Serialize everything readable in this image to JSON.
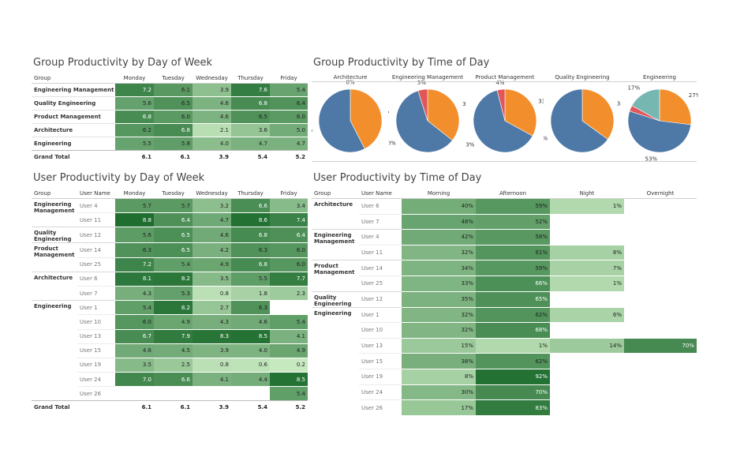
{
  "colors": {
    "morning": "#4e79a7",
    "afternoon": "#f28e2b",
    "night": "#e15759",
    "overnight": "#76b7b2",
    "heat_light": "#c7e9c0",
    "heat_dark": "#1f6e30"
  },
  "group_day": {
    "title": "Group Productivity by Day of Week",
    "group_header": "Group",
    "days": [
      "Monday",
      "Tuesday",
      "Wednesday",
      "Thursday",
      "Friday"
    ],
    "rows": [
      {
        "group": "Engineering Management",
        "values": [
          "7.2",
          "6.1",
          "3.9",
          "7.6",
          "5.4"
        ]
      },
      {
        "group": "Quality Engineering",
        "values": [
          "5.6",
          "6.5",
          "4.6",
          "6.8",
          "6.4"
        ]
      },
      {
        "group": "Product Management",
        "values": [
          "6.8",
          "6.0",
          "4.6",
          "6.5",
          "6.0"
        ]
      },
      {
        "group": "Architecture",
        "values": [
          "6.2",
          "6.8",
          "2.1",
          "3.6",
          "5.0"
        ]
      },
      {
        "group": "Engineering",
        "values": [
          "5.5",
          "5.8",
          "4.0",
          "4.7",
          "4.7"
        ]
      }
    ],
    "total_label": "Grand Total",
    "totals": [
      "6.1",
      "6.1",
      "3.9",
      "5.4",
      "5.2"
    ]
  },
  "group_time": {
    "title": "Group Productivity by Time of Day",
    "pies": [
      {
        "name": "Architecture",
        "slices": [
          {
            "key": "morning",
            "value": 57,
            "label": "57%"
          },
          {
            "key": "afternoon",
            "value": 42,
            "label": "42%"
          },
          {
            "key": "night",
            "value": 0,
            "label": "0%"
          }
        ]
      },
      {
        "name": "Engineering Management",
        "slices": [
          {
            "key": "morning",
            "value": 60,
            "label": "60%"
          },
          {
            "key": "afternoon",
            "value": 36,
            "label": "36%"
          },
          {
            "key": "night",
            "value": 5,
            "label": "5%"
          }
        ]
      },
      {
        "name": "Product Management",
        "slices": [
          {
            "key": "morning",
            "value": 63,
            "label": "63%"
          },
          {
            "key": "afternoon",
            "value": 33,
            "label": "33%"
          },
          {
            "key": "night",
            "value": 4,
            "label": "4%"
          }
        ]
      },
      {
        "name": "Quality Engineering",
        "slices": [
          {
            "key": "morning",
            "value": 65,
            "label": "65%"
          },
          {
            "key": "afternoon",
            "value": 35,
            "label": "35%"
          }
        ]
      },
      {
        "name": "Engineering",
        "slices": [
          {
            "key": "morning",
            "value": 53,
            "label": "53%"
          },
          {
            "key": "afternoon",
            "value": 27,
            "label": "27%"
          },
          {
            "key": "night",
            "value": 3,
            "label": ""
          },
          {
            "key": "overnight",
            "value": 17,
            "label": "17%"
          }
        ]
      }
    ]
  },
  "user_day": {
    "title": "User Productivity by Day of Week",
    "group_header": "Group",
    "user_header": "User Name",
    "days": [
      "Monday",
      "Tuesday",
      "Wednesday",
      "Thursday",
      "Friday"
    ],
    "groups": [
      {
        "group": "Engineering Management",
        "users": [
          {
            "user": "User 4",
            "values": [
              "5.7",
              "5.7",
              "3.2",
              "6.6",
              "3.4"
            ]
          },
          {
            "user": "User 11",
            "values": [
              "8.8",
              "6.4",
              "4.7",
              "8.6",
              "7.4"
            ]
          }
        ]
      },
      {
        "group": "Quality Engineering",
        "users": [
          {
            "user": "User 12",
            "values": [
              "5.6",
              "6.5",
              "4.6",
              "6.8",
              "6.4"
            ]
          }
        ]
      },
      {
        "group": "Product Management",
        "users": [
          {
            "user": "User 14",
            "values": [
              "6.3",
              "6.5",
              "4.2",
              "6.3",
              "6.0"
            ]
          },
          {
            "user": "User 25",
            "values": [
              "7.2",
              "5.4",
              "4.9",
              "6.8",
              "6.0"
            ]
          }
        ]
      },
      {
        "group": "Architecture",
        "users": [
          {
            "user": "User 6",
            "values": [
              "8.1",
              "8.2",
              "3.5",
              "5.5",
              "7.7"
            ]
          },
          {
            "user": "User 7",
            "values": [
              "4.3",
              "5.3",
              "0.8",
              "1.8",
              "2.3"
            ]
          }
        ]
      },
      {
        "group": "Engineering",
        "users": [
          {
            "user": "User 1",
            "values": [
              "5.4",
              "8.2",
              "2.7",
              "6.3",
              ""
            ]
          },
          {
            "user": "User 10",
            "values": [
              "6.0",
              "4.9",
              "4.3",
              "4.6",
              "5.4"
            ]
          },
          {
            "user": "User 13",
            "values": [
              "6.7",
              "7.9",
              "8.3",
              "8.5",
              "4.1"
            ]
          },
          {
            "user": "User 15",
            "values": [
              "4.6",
              "4.5",
              "3.9",
              "4.0",
              "4.9"
            ]
          },
          {
            "user": "User 19",
            "values": [
              "3.5",
              "2.5",
              "0.8",
              "0.6",
              "0.2"
            ]
          },
          {
            "user": "User 24",
            "values": [
              "7.0",
              "6.6",
              "4.1",
              "4.4",
              "8.5"
            ]
          },
          {
            "user": "User 26",
            "values": [
              "",
              "",
              "",
              "",
              "5.4"
            ]
          }
        ]
      }
    ],
    "total_label": "Grand Total",
    "totals": [
      "6.1",
      "6.1",
      "3.9",
      "5.4",
      "5.2"
    ]
  },
  "user_time": {
    "title": "User Productivity by Time of Day",
    "group_header": "Group",
    "user_header": "User Name",
    "periods": [
      "Morning",
      "Afternoon",
      "Night",
      "Overnight"
    ],
    "groups": [
      {
        "group": "Architecture",
        "users": [
          {
            "user": "User 6",
            "values": [
              "40%",
              "59%",
              "1%",
              ""
            ]
          },
          {
            "user": "User 7",
            "values": [
              "48%",
              "52%",
              "",
              ""
            ]
          }
        ]
      },
      {
        "group": "Engineering Management",
        "users": [
          {
            "user": "User 4",
            "values": [
              "42%",
              "58%",
              "",
              ""
            ]
          },
          {
            "user": "User 11",
            "values": [
              "32%",
              "61%",
              "8%",
              ""
            ]
          }
        ]
      },
      {
        "group": "Product Management",
        "users": [
          {
            "user": "User 14",
            "values": [
              "34%",
              "59%",
              "7%",
              ""
            ]
          },
          {
            "user": "User 25",
            "values": [
              "33%",
              "66%",
              "1%",
              ""
            ]
          }
        ]
      },
      {
        "group": "Quality Engineering",
        "users": [
          {
            "user": "User 12",
            "values": [
              "35%",
              "65%",
              "",
              ""
            ]
          }
        ]
      },
      {
        "group": "Engineering",
        "users": [
          {
            "user": "User 1",
            "values": [
              "32%",
              "62%",
              "6%",
              ""
            ]
          },
          {
            "user": "User 10",
            "values": [
              "32%",
              "68%",
              "",
              ""
            ]
          },
          {
            "user": "User 13",
            "values": [
              "15%",
              "1%",
              "14%",
              "70%"
            ]
          },
          {
            "user": "User 15",
            "values": [
              "38%",
              "62%",
              "",
              ""
            ]
          },
          {
            "user": "User 19",
            "values": [
              "8%",
              "92%",
              "",
              ""
            ]
          },
          {
            "user": "User 24",
            "values": [
              "30%",
              "70%",
              "",
              ""
            ]
          },
          {
            "user": "User 26",
            "values": [
              "17%",
              "83%",
              "",
              ""
            ]
          }
        ]
      }
    ]
  }
}
